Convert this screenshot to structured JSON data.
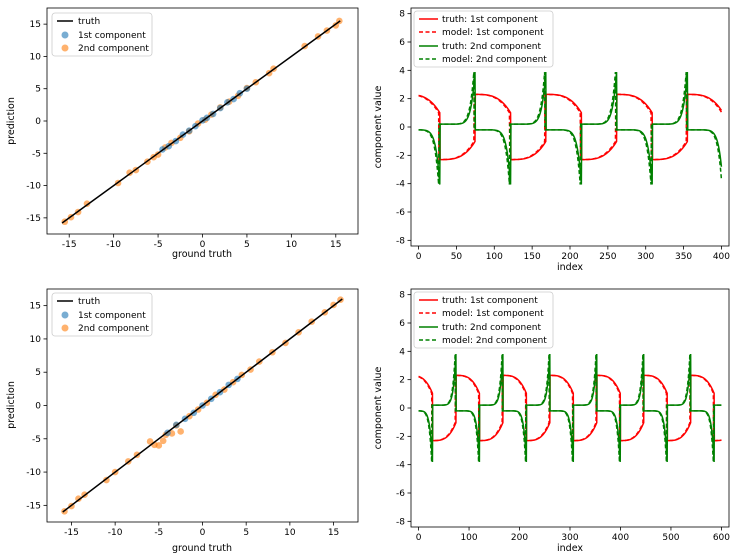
{
  "chart_data": [
    {
      "type": "scatter",
      "id": "tl",
      "xlabel": "ground truth",
      "ylabel": "prediction",
      "xlim": [
        -17.5,
        17.5
      ],
      "ylim": [
        -17.5,
        17.5
      ],
      "xticks": [
        -15,
        -10,
        -5,
        0,
        5,
        10,
        15
      ],
      "yticks": [
        -15,
        -10,
        -5,
        0,
        5,
        10,
        15
      ],
      "legend_position": "top-left",
      "truth_line": {
        "name": "truth",
        "color": "#000000",
        "x": [
          -15.8,
          15.5
        ],
        "y": [
          -15.8,
          15.5
        ]
      },
      "series": [
        {
          "name": "1st  component",
          "color": "#1f77b4",
          "x": [
            -4.5,
            -3.8,
            -3.0,
            -2.2,
            -1.5,
            -0.8,
            0.0,
            0.5,
            1.2,
            2.0,
            2.8,
            3.5,
            4.2,
            5.0
          ],
          "y": [
            -4.4,
            -3.9,
            -3.1,
            -2.1,
            -1.5,
            -0.8,
            0.1,
            0.5,
            1.1,
            2.0,
            2.9,
            3.4,
            4.3,
            5.0
          ]
        },
        {
          "name": "2nd component",
          "color": "#ff7f0e",
          "x": [
            -15.5,
            -14.8,
            -14.0,
            -13.0,
            -9.5,
            -8.2,
            -7.5,
            -6.2,
            -5.5,
            -5.0,
            -4.2,
            -3.5,
            -2.5,
            -1.5,
            -0.5,
            0.3,
            1.0,
            2.0,
            3.0,
            4.0,
            5.0,
            6.0,
            7.5,
            8.0,
            11.5,
            13.0,
            14.0,
            15.0,
            15.4
          ],
          "y": [
            -15.6,
            -14.9,
            -14.1,
            -12.8,
            -9.6,
            -8.0,
            -7.6,
            -6.3,
            -5.6,
            -5.2,
            -4.1,
            -3.4,
            -2.6,
            -1.6,
            -0.4,
            0.2,
            1.0,
            2.1,
            3.0,
            3.9,
            5.1,
            6.0,
            7.4,
            8.1,
            11.6,
            13.1,
            14.0,
            14.8,
            15.5
          ]
        }
      ]
    },
    {
      "type": "line",
      "id": "tr",
      "xlabel": "index",
      "ylabel": "component value",
      "xlim": [
        -10,
        410
      ],
      "ylim": [
        -8.4,
        8.4
      ],
      "xticks": [
        0,
        50,
        100,
        150,
        200,
        250,
        300,
        350,
        400
      ],
      "yticks": [
        -8,
        -6,
        -4,
        -2,
        0,
        2,
        4,
        6,
        8
      ],
      "legend_position": "top-left",
      "period": 93.5,
      "n": 400,
      "series": [
        {
          "name": "truth: 1st  component",
          "color": "#ff0000",
          "style": "solid"
        },
        {
          "name": "model: 1st  component",
          "color": "#ff0000",
          "style": "dashed"
        },
        {
          "name": "truth: 2nd component",
          "color": "#008000",
          "style": "solid"
        },
        {
          "name": "model: 2nd  component",
          "color": "#008000",
          "style": "dashed"
        }
      ]
    },
    {
      "type": "scatter",
      "id": "bl",
      "xlabel": "ground truth",
      "ylabel": "prediction",
      "xlim": [
        -17.8,
        17.8
      ],
      "ylim": [
        -17.5,
        17.5
      ],
      "xticks": [
        -15,
        -10,
        -5,
        0,
        5,
        10,
        15
      ],
      "yticks": [
        -15,
        -10,
        -5,
        0,
        5,
        10,
        15
      ],
      "legend_position": "top-left",
      "truth_line": {
        "name": "truth",
        "color": "#000000",
        "x": [
          -16.0,
          16.0
        ],
        "y": [
          -16.0,
          16.0
        ]
      },
      "series": [
        {
          "name": "1st  component",
          "color": "#1f77b4",
          "x": [
            -4.0,
            -3.0,
            -2.0,
            -1.0,
            0.0,
            1.0,
            2.0,
            3.0,
            4.0
          ],
          "y": [
            -4.1,
            -2.9,
            -2.0,
            -1.1,
            0.0,
            1.0,
            2.0,
            3.1,
            4.0
          ]
        },
        {
          "name": "2nd component",
          "color": "#ff7f0e",
          "x": [
            -15.8,
            -15.0,
            -14.2,
            -13.5,
            -11.0,
            -10.0,
            -8.5,
            -7.5,
            -6.0,
            -5.5,
            -5.0,
            -4.5,
            -4.2,
            -3.5,
            -3.0,
            -2.5,
            -1.5,
            -0.5,
            0.5,
            1.5,
            2.5,
            3.5,
            4.5,
            5.5,
            6.5,
            8.0,
            9.5,
            11.0,
            12.5,
            14.0,
            15.0,
            15.8
          ],
          "y": [
            -15.9,
            -15.1,
            -14.0,
            -13.4,
            -11.2,
            -10.0,
            -8.4,
            -7.4,
            -5.4,
            -5.9,
            -6.0,
            -5.3,
            -4.4,
            -4.2,
            -3.0,
            -3.9,
            -1.6,
            -0.6,
            0.4,
            1.6,
            2.4,
            3.5,
            4.6,
            5.4,
            6.6,
            8.0,
            9.4,
            11.0,
            12.6,
            14.0,
            15.1,
            15.9
          ]
        }
      ]
    },
    {
      "type": "line",
      "id": "br",
      "xlabel": "index",
      "ylabel": "component value",
      "xlim": [
        -15,
        615
      ],
      "ylim": [
        -8.4,
        8.4
      ],
      "xticks": [
        0,
        100,
        200,
        300,
        400,
        500,
        600
      ],
      "yticks": [
        -8,
        -6,
        -4,
        -2,
        0,
        2,
        4,
        6,
        8
      ],
      "legend_position": "top-left",
      "period": 93.0,
      "n": 600,
      "series": [
        {
          "name": "truth: 1st  component",
          "color": "#ff0000",
          "style": "solid"
        },
        {
          "name": "model: 1st  component",
          "color": "#ff0000",
          "style": "dashed"
        },
        {
          "name": "truth: 2nd component",
          "color": "#008000",
          "style": "solid"
        },
        {
          "name": "model: 2nd  component",
          "color": "#008000",
          "style": "dashed"
        }
      ]
    }
  ]
}
